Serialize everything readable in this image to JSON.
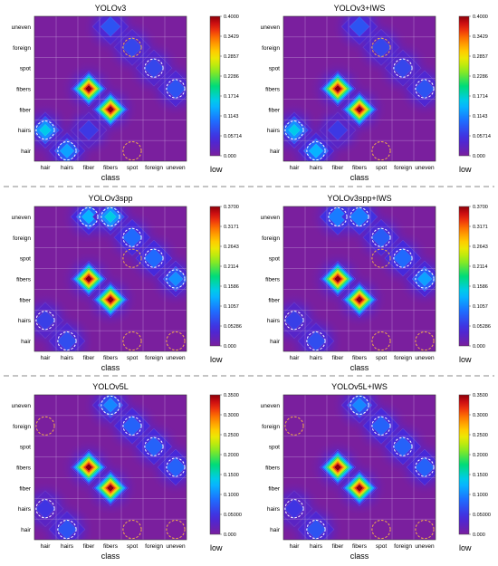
{
  "figure": {
    "legend_low_label": "low",
    "colors": {
      "background": "#7a1f9e",
      "grid": "#c9a6dd",
      "circle": "#f2b04a",
      "divider": "#888888"
    }
  },
  "chart_data": [
    {
      "type": "heatmap",
      "title": "YOLOv3",
      "xlabel": "class",
      "ylabel": "",
      "x_categories": [
        "hair",
        "hairs",
        "fiber",
        "fibers",
        "spot",
        "foreign",
        "uneven"
      ],
      "y_categories": [
        "hair",
        "hairs",
        "fiber",
        "fibers",
        "spot",
        "foreign",
        "uneven"
      ],
      "colorbar": {
        "min": 0,
        "max": 0.4,
        "ticks": [
          "0.4000",
          "0.3429",
          "0.2857",
          "0.2286",
          "0.1714",
          "0.1143",
          "0.05714",
          "0.000"
        ],
        "low_label": "low"
      },
      "grid": true,
      "cells": [
        {
          "x": "hair",
          "y": "hairs",
          "value": 0.16
        },
        {
          "x": "hairs",
          "y": "hair",
          "value": 0.13
        },
        {
          "x": "fiber",
          "y": "hairs",
          "value": 0.06
        },
        {
          "x": "fiber",
          "y": "fibers",
          "value": 0.4
        },
        {
          "x": "fibers",
          "y": "fiber",
          "value": 0.4
        },
        {
          "x": "foreign",
          "y": "spot",
          "value": 0.07
        },
        {
          "x": "uneven",
          "y": "fibers",
          "value": 0.08
        },
        {
          "x": "fibers",
          "y": "uneven",
          "value": 0.08
        },
        {
          "x": "spot",
          "y": "foreign",
          "value": 0.07
        }
      ],
      "circled": [
        {
          "x": "hair",
          "y": "hairs",
          "style": "white"
        },
        {
          "x": "hairs",
          "y": "hair",
          "style": "white"
        },
        {
          "x": "spot",
          "y": "hair",
          "style": "orange"
        },
        {
          "x": "foreign",
          "y": "spot",
          "style": "white"
        },
        {
          "x": "uneven",
          "y": "fibers",
          "style": "white"
        },
        {
          "x": "spot",
          "y": "foreign",
          "style": "orange"
        }
      ]
    },
    {
      "type": "heatmap",
      "title": "YOLOv3+IWS",
      "xlabel": "class",
      "ylabel": "",
      "x_categories": [
        "hair",
        "hairs",
        "fiber",
        "fibers",
        "spot",
        "foreign",
        "uneven"
      ],
      "y_categories": [
        "hair",
        "hairs",
        "fiber",
        "fibers",
        "spot",
        "foreign",
        "uneven"
      ],
      "colorbar": {
        "min": 0,
        "max": 0.4,
        "ticks": [
          "0.4000",
          "0.3429",
          "0.2857",
          "0.2286",
          "0.1714",
          "0.1143",
          "0.05714",
          "0.000"
        ],
        "low_label": "low"
      },
      "grid": true,
      "cells": [
        {
          "x": "hair",
          "y": "hairs",
          "value": 0.16
        },
        {
          "x": "hairs",
          "y": "hair",
          "value": 0.14
        },
        {
          "x": "fiber",
          "y": "hairs",
          "value": 0.06
        },
        {
          "x": "fiber",
          "y": "fibers",
          "value": 0.4
        },
        {
          "x": "fibers",
          "y": "fiber",
          "value": 0.4
        },
        {
          "x": "foreign",
          "y": "spot",
          "value": 0.07
        },
        {
          "x": "uneven",
          "y": "fibers",
          "value": 0.08
        },
        {
          "x": "fibers",
          "y": "uneven",
          "value": 0.08
        },
        {
          "x": "spot",
          "y": "foreign",
          "value": 0.07
        }
      ],
      "circled": [
        {
          "x": "hair",
          "y": "hairs",
          "style": "white"
        },
        {
          "x": "hairs",
          "y": "hair",
          "style": "white"
        },
        {
          "x": "spot",
          "y": "hair",
          "style": "orange"
        },
        {
          "x": "foreign",
          "y": "spot",
          "style": "white"
        },
        {
          "x": "uneven",
          "y": "fibers",
          "style": "white"
        },
        {
          "x": "spot",
          "y": "foreign",
          "style": "orange"
        }
      ]
    },
    {
      "type": "heatmap",
      "title": "YOLOv3spp",
      "xlabel": "class",
      "ylabel": "",
      "x_categories": [
        "hair",
        "hairs",
        "fiber",
        "fibers",
        "spot",
        "foreign",
        "uneven"
      ],
      "y_categories": [
        "hair",
        "hairs",
        "fiber",
        "fibers",
        "spot",
        "foreign",
        "uneven"
      ],
      "colorbar": {
        "min": 0,
        "max": 0.37,
        "ticks": [
          "0.3700",
          "0.3171",
          "0.2643",
          "0.2114",
          "0.1586",
          "0.1057",
          "0.05286",
          "0.000"
        ],
        "low_label": "low"
      },
      "grid": true,
      "cells": [
        {
          "x": "hair",
          "y": "hairs",
          "value": 0.06
        },
        {
          "x": "hairs",
          "y": "hair",
          "value": 0.07
        },
        {
          "x": "fiber",
          "y": "fibers",
          "value": 0.37
        },
        {
          "x": "fibers",
          "y": "fiber",
          "value": 0.37
        },
        {
          "x": "fiber",
          "y": "uneven",
          "value": 0.13
        },
        {
          "x": "fibers",
          "y": "uneven",
          "value": 0.15
        },
        {
          "x": "spot",
          "y": "foreign",
          "value": 0.09
        },
        {
          "x": "foreign",
          "y": "spot",
          "value": 0.09
        },
        {
          "x": "uneven",
          "y": "fibers",
          "value": 0.11
        }
      ],
      "circled": [
        {
          "x": "hair",
          "y": "hairs",
          "style": "white"
        },
        {
          "x": "hairs",
          "y": "hair",
          "style": "white"
        },
        {
          "x": "spot",
          "y": "hair",
          "style": "orange"
        },
        {
          "x": "uneven",
          "y": "hair",
          "style": "orange"
        },
        {
          "x": "spot",
          "y": "spot",
          "style": "orange"
        },
        {
          "x": "foreign",
          "y": "spot",
          "style": "white"
        },
        {
          "x": "uneven",
          "y": "fibers",
          "style": "white"
        },
        {
          "x": "fiber",
          "y": "uneven",
          "style": "white"
        },
        {
          "x": "fibers",
          "y": "uneven",
          "style": "white"
        },
        {
          "x": "spot",
          "y": "foreign",
          "style": "white"
        }
      ]
    },
    {
      "type": "heatmap",
      "title": "YOLOv3spp+IWS",
      "xlabel": "class",
      "ylabel": "",
      "x_categories": [
        "hair",
        "hairs",
        "fiber",
        "fibers",
        "spot",
        "foreign",
        "uneven"
      ],
      "y_categories": [
        "hair",
        "hairs",
        "fiber",
        "fibers",
        "spot",
        "foreign",
        "uneven"
      ],
      "colorbar": {
        "min": 0,
        "max": 0.37,
        "ticks": [
          "0.3700",
          "0.3171",
          "0.2643",
          "0.2114",
          "0.1586",
          "0.1057",
          "0.05286",
          "0.000"
        ],
        "low_label": "low"
      },
      "grid": true,
      "cells": [
        {
          "x": "hair",
          "y": "hairs",
          "value": 0.06
        },
        {
          "x": "hairs",
          "y": "hair",
          "value": 0.07
        },
        {
          "x": "fiber",
          "y": "fibers",
          "value": 0.37
        },
        {
          "x": "fibers",
          "y": "fiber",
          "value": 0.37
        },
        {
          "x": "fiber",
          "y": "uneven",
          "value": 0.1
        },
        {
          "x": "fibers",
          "y": "uneven",
          "value": 0.1
        },
        {
          "x": "spot",
          "y": "foreign",
          "value": 0.08
        },
        {
          "x": "foreign",
          "y": "spot",
          "value": 0.09
        },
        {
          "x": "uneven",
          "y": "fibers",
          "value": 0.12
        }
      ],
      "circled": [
        {
          "x": "hair",
          "y": "hairs",
          "style": "white"
        },
        {
          "x": "hairs",
          "y": "hair",
          "style": "white"
        },
        {
          "x": "spot",
          "y": "hair",
          "style": "orange"
        },
        {
          "x": "uneven",
          "y": "hair",
          "style": "orange"
        },
        {
          "x": "spot",
          "y": "spot",
          "style": "orange"
        },
        {
          "x": "foreign",
          "y": "spot",
          "style": "white"
        },
        {
          "x": "uneven",
          "y": "fibers",
          "style": "white"
        },
        {
          "x": "fiber",
          "y": "uneven",
          "style": "white"
        },
        {
          "x": "fibers",
          "y": "uneven",
          "style": "white"
        },
        {
          "x": "spot",
          "y": "foreign",
          "style": "white"
        }
      ]
    },
    {
      "type": "heatmap",
      "title": "YOLOv5L",
      "xlabel": "class",
      "ylabel": "",
      "x_categories": [
        "hair",
        "hairs",
        "fiber",
        "fibers",
        "spot",
        "foreign",
        "uneven"
      ],
      "y_categories": [
        "hair",
        "hairs",
        "fiber",
        "fibers",
        "spot",
        "foreign",
        "uneven"
      ],
      "colorbar": {
        "min": 0,
        "max": 0.35,
        "ticks": [
          "0.3500",
          "0.3000",
          "0.2500",
          "0.2000",
          "0.1500",
          "0.1000",
          "0.05000",
          "0.000"
        ],
        "low_label": "low"
      },
      "grid": true,
      "cells": [
        {
          "x": "hair",
          "y": "hairs",
          "value": 0.05
        },
        {
          "x": "hairs",
          "y": "hair",
          "value": 0.07
        },
        {
          "x": "fiber",
          "y": "fibers",
          "value": 0.35
        },
        {
          "x": "fibers",
          "y": "fiber",
          "value": 0.35
        },
        {
          "x": "fibers",
          "y": "uneven",
          "value": 0.1
        },
        {
          "x": "spot",
          "y": "foreign",
          "value": 0.08
        },
        {
          "x": "foreign",
          "y": "spot",
          "value": 0.08
        },
        {
          "x": "uneven",
          "y": "fibers",
          "value": 0.08
        }
      ],
      "circled": [
        {
          "x": "hair",
          "y": "hairs",
          "style": "white"
        },
        {
          "x": "hairs",
          "y": "hair",
          "style": "white"
        },
        {
          "x": "hair",
          "y": "foreign",
          "style": "orange"
        },
        {
          "x": "spot",
          "y": "hair",
          "style": "orange"
        },
        {
          "x": "uneven",
          "y": "hair",
          "style": "orange"
        },
        {
          "x": "fibers",
          "y": "uneven",
          "style": "white"
        },
        {
          "x": "spot",
          "y": "foreign",
          "style": "white"
        },
        {
          "x": "foreign",
          "y": "spot",
          "style": "white"
        },
        {
          "x": "uneven",
          "y": "fibers",
          "style": "white"
        }
      ]
    },
    {
      "type": "heatmap",
      "title": "YOLOv5L+IWS",
      "xlabel": "class",
      "ylabel": "",
      "x_categories": [
        "hair",
        "hairs",
        "fiber",
        "fibers",
        "spot",
        "foreign",
        "uneven"
      ],
      "y_categories": [
        "hair",
        "hairs",
        "fiber",
        "fibers",
        "spot",
        "foreign",
        "uneven"
      ],
      "colorbar": {
        "min": 0,
        "max": 0.35,
        "ticks": [
          "0.3500",
          "0.3000",
          "0.2500",
          "0.2000",
          "0.1500",
          "0.1000",
          "0.05000",
          "0.000"
        ],
        "low_label": "low"
      },
      "grid": true,
      "cells": [
        {
          "x": "hair",
          "y": "hairs",
          "value": 0.05
        },
        {
          "x": "hairs",
          "y": "hair",
          "value": 0.07
        },
        {
          "x": "fiber",
          "y": "fibers",
          "value": 0.35
        },
        {
          "x": "fibers",
          "y": "fiber",
          "value": 0.35
        },
        {
          "x": "fibers",
          "y": "uneven",
          "value": 0.1
        },
        {
          "x": "spot",
          "y": "foreign",
          "value": 0.08
        },
        {
          "x": "foreign",
          "y": "spot",
          "value": 0.08
        },
        {
          "x": "uneven",
          "y": "fibers",
          "value": 0.08
        }
      ],
      "circled": [
        {
          "x": "hair",
          "y": "hairs",
          "style": "white"
        },
        {
          "x": "hairs",
          "y": "hair",
          "style": "white"
        },
        {
          "x": "hair",
          "y": "foreign",
          "style": "orange"
        },
        {
          "x": "spot",
          "y": "hair",
          "style": "orange"
        },
        {
          "x": "uneven",
          "y": "hair",
          "style": "orange"
        },
        {
          "x": "fibers",
          "y": "uneven",
          "style": "white"
        },
        {
          "x": "spot",
          "y": "foreign",
          "style": "white"
        },
        {
          "x": "foreign",
          "y": "spot",
          "style": "white"
        },
        {
          "x": "uneven",
          "y": "fibers",
          "style": "white"
        }
      ]
    }
  ]
}
